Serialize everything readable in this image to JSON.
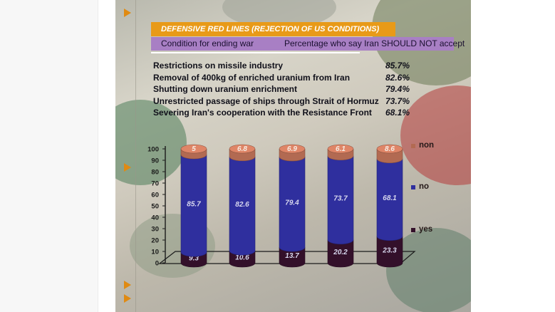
{
  "page": {
    "title": "DEFENSIVE RED LINES (REJECTION OF US CONDITIONS)",
    "header_left": "Condition for ending war",
    "header_right": "Percentage who say Iran SHOULD NOT accept"
  },
  "conditions": [
    {
      "label": "Restrictions on missile industry",
      "pct": "85.7%"
    },
    {
      "label": "Removal of 400kg of enriched uranium from Iran",
      "pct": "82.6%"
    },
    {
      "label": "Shutting down uranium enrichment",
      "pct": "79.4%"
    },
    {
      "label": "Unrestricted passage of ships through Strait of Hormuz",
      "pct": "73.7%"
    },
    {
      "label": "Severing Iran's cooperation with the Resistance Front",
      "pct": "68.1%"
    }
  ],
  "colors": {
    "yes": "#33102a",
    "no": "#2f2f9e",
    "non": "#b26a52",
    "title_bar": "#e89a18",
    "header_bar": "#a87fc4"
  },
  "chart_data": {
    "type": "bar",
    "stacked": true,
    "title": "",
    "xlabel": "",
    "ylabel": "",
    "ylim": [
      0,
      100
    ],
    "yticks": [
      0,
      10,
      20,
      30,
      40,
      50,
      60,
      70,
      80,
      90,
      100
    ],
    "categories": [
      "",
      "",
      "",
      "",
      ""
    ],
    "series": [
      {
        "name": "yes",
        "values": [
          9.3,
          10.6,
          13.7,
          20.2,
          23.3
        ]
      },
      {
        "name": "no",
        "values": [
          85.7,
          82.6,
          79.4,
          73.7,
          68.1
        ]
      },
      {
        "name": "non",
        "values": [
          5,
          6.8,
          6.9,
          6.1,
          8.6
        ]
      }
    ],
    "legend": [
      "non",
      "no",
      "yes"
    ],
    "legend_position": "right"
  }
}
